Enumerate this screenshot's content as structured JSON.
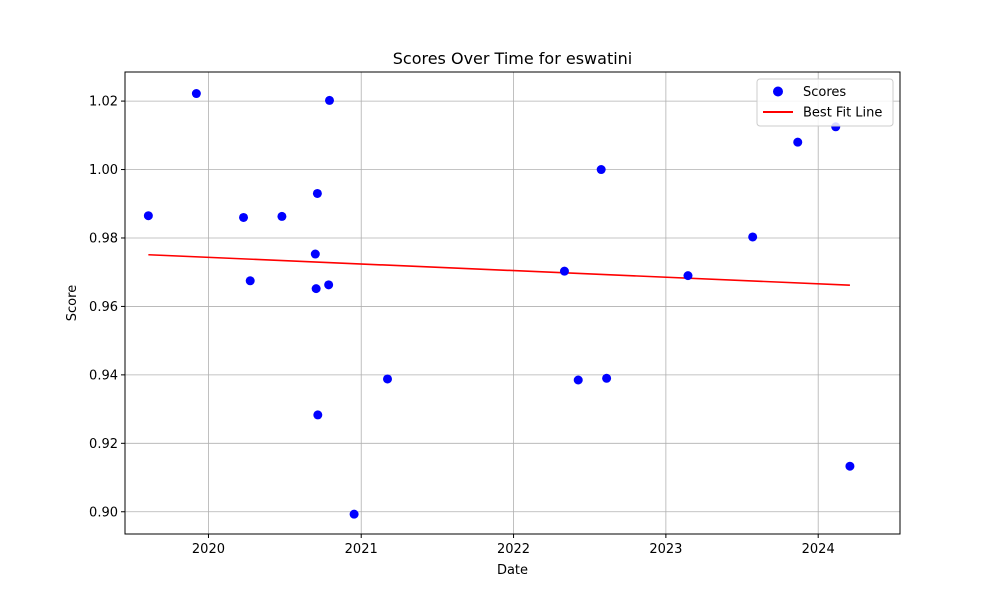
{
  "chart_data": {
    "type": "scatter",
    "title": "Scores Over Time for eswatini",
    "xlabel": "Date",
    "ylabel": "Score",
    "x_axis_type": "date",
    "xlim": [
      "2019-06-15",
      "2024-07-15"
    ],
    "ylim": [
      0.8935,
      1.0285
    ],
    "x_ticks": [
      "2020",
      "2021",
      "2022",
      "2023",
      "2024"
    ],
    "y_ticks": [
      "0.90",
      "0.92",
      "0.94",
      "0.96",
      "0.98",
      "1.00",
      "1.02"
    ],
    "grid": true,
    "legend": {
      "placement": "top-right",
      "entries": [
        "Scores",
        "Best Fit Line"
      ]
    },
    "series": [
      {
        "name": "Scores",
        "kind": "scatter",
        "color": "#0000ff",
        "points": [
          {
            "date": "2019-08-10",
            "score": 0.9865
          },
          {
            "date": "2019-12-03",
            "score": 1.0222
          },
          {
            "date": "2020-03-25",
            "score": 0.986
          },
          {
            "date": "2020-04-10",
            "score": 0.9675
          },
          {
            "date": "2020-06-25",
            "score": 0.9863
          },
          {
            "date": "2020-09-13",
            "score": 0.9753
          },
          {
            "date": "2020-09-15",
            "score": 0.9652
          },
          {
            "date": "2020-09-18",
            "score": 0.993
          },
          {
            "date": "2020-09-19",
            "score": 0.9283
          },
          {
            "date": "2020-10-15",
            "score": 0.9663
          },
          {
            "date": "2020-10-17",
            "score": 1.0202
          },
          {
            "date": "2020-12-15",
            "score": 0.8993
          },
          {
            "date": "2021-03-05",
            "score": 0.9388
          },
          {
            "date": "2022-05-03",
            "score": 0.9703
          },
          {
            "date": "2022-06-05",
            "score": 0.9385
          },
          {
            "date": "2022-07-30",
            "score": 1.0
          },
          {
            "date": "2022-08-12",
            "score": 0.939
          },
          {
            "date": "2023-02-23",
            "score": 0.969
          },
          {
            "date": "2023-07-28",
            "score": 0.9803
          },
          {
            "date": "2023-11-13",
            "score": 1.008
          },
          {
            "date": "2024-02-12",
            "score": 1.0125
          },
          {
            "date": "2024-03-17",
            "score": 0.9133
          }
        ]
      },
      {
        "name": "Best Fit Line",
        "kind": "line",
        "color": "#ff0000",
        "points": [
          {
            "date": "2019-08-10",
            "score": 0.9751
          },
          {
            "date": "2024-03-17",
            "score": 0.9662
          }
        ]
      }
    ]
  }
}
